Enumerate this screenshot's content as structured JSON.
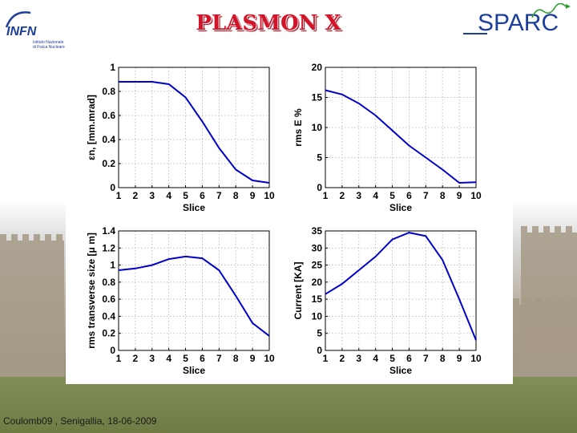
{
  "slide": {
    "title": "PLASMON X",
    "footer": "Coulomb09 , Senigallia, 18-06-2009",
    "logo_left": {
      "icon": "infn-logo-icon",
      "text": "INFN",
      "sub1": "Istituto Nazionale",
      "sub2": "di Fisica Nucleare"
    },
    "logo_right": {
      "icon": "sparc-logo-icon",
      "text": "SPARC"
    },
    "colors": {
      "title": "#d2142a",
      "line": "#0000cc",
      "sparc": "#1d3f9b"
    }
  },
  "chart_data": [
    {
      "type": "line",
      "xlabel": "Slice",
      "ylabel": "εn, [mm.mrad]",
      "x": [
        1,
        2,
        3,
        4,
        5,
        6,
        7,
        8,
        9,
        10
      ],
      "series": [
        {
          "values": [
            0.88,
            0.88,
            0.88,
            0.86,
            0.75,
            0.55,
            0.33,
            0.15,
            0.06,
            0.04
          ]
        }
      ],
      "xlim": [
        1,
        10
      ],
      "ylim": [
        0,
        1
      ],
      "xticks": [
        "1",
        "2",
        "3",
        "4",
        "5",
        "6",
        "7",
        "8",
        "9",
        "10"
      ],
      "yticks": [
        "0",
        "0.2",
        "0.4",
        "0.6",
        "0.8",
        "1"
      ],
      "grid": true
    },
    {
      "type": "line",
      "xlabel": "Slice",
      "ylabel": "rms E %",
      "x": [
        1,
        2,
        3,
        4,
        5,
        6,
        7,
        8,
        9,
        10
      ],
      "series": [
        {
          "values": [
            16.2,
            15.5,
            14.0,
            12.0,
            9.5,
            7.0,
            5.0,
            3.0,
            0.8,
            0.9
          ]
        }
      ],
      "xlim": [
        1,
        10
      ],
      "ylim": [
        0,
        20
      ],
      "xticks": [
        "1",
        "2",
        "3",
        "4",
        "5",
        "6",
        "7",
        "8",
        "9",
        "10"
      ],
      "yticks": [
        "0",
        "5",
        "10",
        "15",
        "20"
      ],
      "grid": true
    },
    {
      "type": "line",
      "xlabel": "Slice",
      "ylabel": "rms transverse size [μ m]",
      "x": [
        1,
        2,
        3,
        4,
        5,
        6,
        7,
        8,
        9,
        10
      ],
      "series": [
        {
          "values": [
            0.94,
            0.96,
            1.0,
            1.07,
            1.1,
            1.08,
            0.94,
            0.64,
            0.32,
            0.17
          ]
        }
      ],
      "xlim": [
        1,
        10
      ],
      "ylim": [
        0,
        1.4
      ],
      "xticks": [
        "1",
        "2",
        "3",
        "4",
        "5",
        "6",
        "7",
        "8",
        "9",
        "10"
      ],
      "yticks": [
        "0",
        "0.2",
        "0.4",
        "0.6",
        "0.8",
        "1",
        "1.2",
        "1.4"
      ],
      "grid": true
    },
    {
      "type": "line",
      "xlabel": "Slice",
      "ylabel": "Current [KA]",
      "x": [
        1,
        2,
        3,
        4,
        5,
        6,
        7,
        8,
        9,
        10
      ],
      "series": [
        {
          "values": [
            16.5,
            19.5,
            23.5,
            27.5,
            32.5,
            34.5,
            33.5,
            26.5,
            15.0,
            3.0
          ]
        }
      ],
      "xlim": [
        1,
        10
      ],
      "ylim": [
        0,
        35
      ],
      "xticks": [
        "1",
        "2",
        "3",
        "4",
        "5",
        "6",
        "7",
        "8",
        "9",
        "10"
      ],
      "yticks": [
        "0",
        "5",
        "10",
        "15",
        "20",
        "25",
        "30",
        "35"
      ],
      "grid": true
    }
  ]
}
